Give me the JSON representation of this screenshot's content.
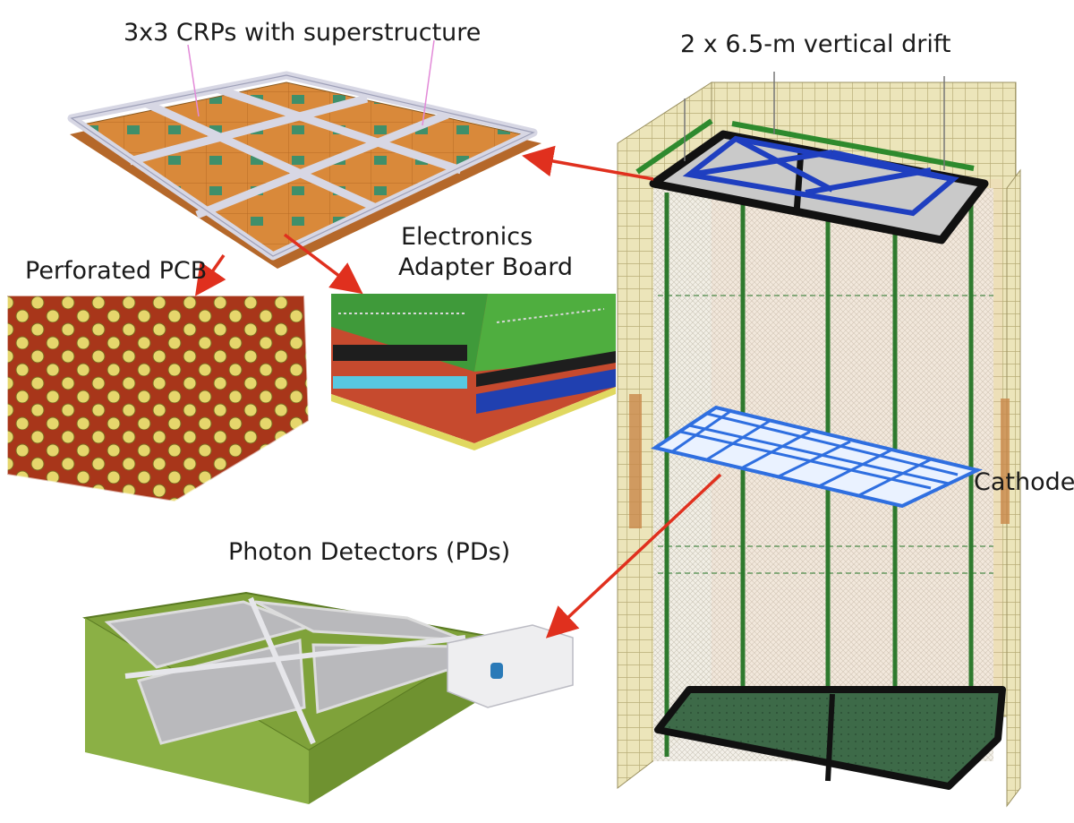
{
  "labels": {
    "crp": "3x3 CRPs with superstructure",
    "drift": "2 x 6.5-m vertical drift",
    "pcb": "Perforated PCB",
    "electronics_line1": "Electronics",
    "electronics_line2": "Adapter Board",
    "cathode": "Cathode",
    "pds": "Photon Detectors (PDs)"
  },
  "colors": {
    "arrow": "#e0301e",
    "cryostat_wall": "#e8e0b0",
    "frame_blue": "#1f3fc0",
    "cathode_blue": "#2f6fe0",
    "pcb_copper": "#b8401e",
    "pcb_hole": "#e8d870",
    "pd_frame": "#7fa23a",
    "floor_green": "#3f6a4a"
  }
}
